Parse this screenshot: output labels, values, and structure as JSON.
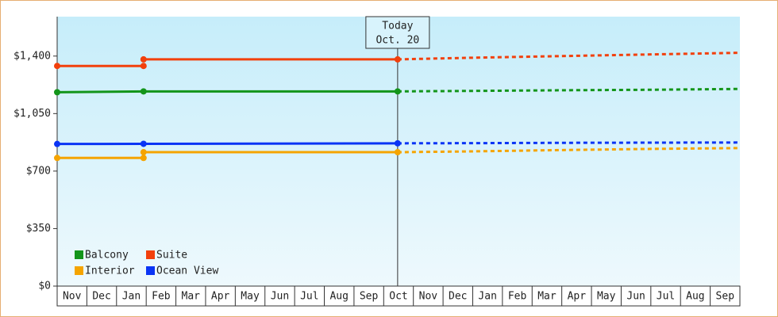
{
  "chart_data": {
    "type": "line",
    "ylim": [
      0,
      1640
    ],
    "yticks": [
      {
        "value": 0,
        "label": "$0"
      },
      {
        "value": 350,
        "label": "$350"
      },
      {
        "value": 700,
        "label": "$700"
      },
      {
        "value": 1050,
        "label": "$1,050"
      },
      {
        "value": 1400,
        "label": "$1,400"
      }
    ],
    "xlim": [
      0,
      23
    ],
    "categories": [
      "Nov",
      "Dec",
      "Jan",
      "Feb",
      "Mar",
      "Apr",
      "May",
      "Jun",
      "Jul",
      "Aug",
      "Sep",
      "Oct",
      "Nov",
      "Dec",
      "Jan",
      "Feb",
      "Mar",
      "Apr",
      "May",
      "Jun",
      "Jul",
      "Aug",
      "Sep"
    ],
    "today": {
      "x": 11.47,
      "label": "Today",
      "date": "Oct. 20"
    },
    "legend_position": "lower-left",
    "series": [
      {
        "name": "Balcony",
        "color": "#13951a",
        "x": [
          0,
          2.91,
          11.47
        ],
        "values": [
          1180,
          1185,
          1185
        ],
        "forecast": {
          "x": [
            11.47,
            14,
            17,
            20,
            23
          ],
          "values": [
            1185,
            1188,
            1192,
            1195,
            1200
          ]
        }
      },
      {
        "name": "Suite",
        "color": "#f2400c",
        "x": [
          0,
          2.91,
          2.91,
          2.91,
          11.47
        ],
        "values": [
          1340,
          1340,
          null,
          1380,
          1380
        ],
        "forecast": {
          "x": [
            11.47,
            14,
            17,
            20,
            23
          ],
          "values": [
            1380,
            1390,
            1400,
            1410,
            1420
          ]
        }
      },
      {
        "name": "Interior",
        "color": "#f5a400",
        "x": [
          0,
          2.91,
          2.91,
          2.91,
          11.47
        ],
        "values": [
          780,
          780,
          null,
          815,
          815
        ],
        "forecast": {
          "x": [
            11.47,
            14,
            17,
            20,
            23
          ],
          "values": [
            815,
            820,
            828,
            835,
            840
          ]
        }
      },
      {
        "name": "Ocean View",
        "color": "#0a34f5",
        "x": [
          0,
          2.91,
          11.47
        ],
        "values": [
          865,
          866,
          869
        ],
        "forecast": {
          "x": [
            11.47,
            14,
            17,
            20,
            23
          ],
          "values": [
            869,
            870,
            872,
            873,
            874
          ]
        }
      }
    ]
  }
}
